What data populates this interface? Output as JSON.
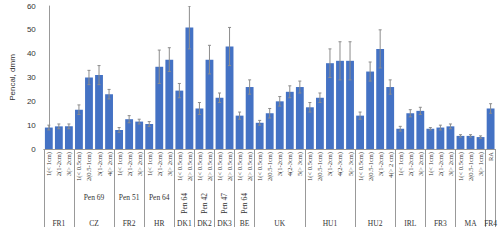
{
  "chart_data": {
    "type": "bar",
    "ylabel": "Pencal, dmm",
    "color": "#4472c4",
    "ylim": [
      0,
      60
    ],
    "yticks": [
      0,
      10,
      20,
      30,
      40,
      50,
      60
    ],
    "grid": false,
    "groups": [
      {
        "label": "FR1",
        "categories": [
          "1(< 1cm)",
          "2(1-2cm)",
          "3(> 2cm)"
        ],
        "values": [
          9,
          9.5,
          9.5
        ],
        "errors": [
          1,
          1,
          1
        ]
      },
      {
        "label": "CZ",
        "sublabel": "Pen 69",
        "categories": [
          "1(< 0.5cm)",
          "2(0.5-1cm)",
          "3(1-2cm)",
          "4(> 2cm)"
        ],
        "values": [
          16.5,
          30,
          31,
          23
        ],
        "errors": [
          2,
          3,
          4,
          2
        ]
      },
      {
        "label": "FR2",
        "sublabel": "Pen 51",
        "categories": [
          "1(< 1cm)",
          "2(1-2cm)",
          "3(> 2cm)"
        ],
        "values": [
          8,
          12.5,
          11.5
        ],
        "errors": [
          1,
          1.5,
          1
        ]
      },
      {
        "label": "HR",
        "sublabel": "Pen 64",
        "categories": [
          "1(< 1cm)",
          "2(1-2cm)",
          "3(> 2cm)"
        ],
        "values": [
          10.5,
          34.5,
          37.5
        ],
        "errors": [
          1,
          7,
          5
        ]
      },
      {
        "label": "DK1",
        "sublabel": "Pen 64",
        "categories": [
          "1(< 0.5cm)",
          "2(> 0.5cm)"
        ],
        "values": [
          24.5,
          51
        ],
        "errors": [
          3,
          9
        ]
      },
      {
        "label": "DK2",
        "sublabel": "Pen 42",
        "categories": [
          "1(< 0.5cm)",
          "2(> 0.5cm)"
        ],
        "values": [
          17,
          37.5
        ],
        "errors": [
          2.5,
          6
        ]
      },
      {
        "label": "DK3",
        "sublabel": "Pen 47",
        "categories": [
          "1(< 0.5cm)",
          "2(> 0.5cm)"
        ],
        "values": [
          21.5,
          43
        ],
        "errors": [
          2,
          8
        ]
      },
      {
        "label": "BE",
        "sublabel": "Pen 64",
        "categories": [
          "1(< 0.5cm)",
          "2(> 0.5cm)"
        ],
        "values": [
          14,
          26
        ],
        "errors": [
          1.5,
          3
        ]
      },
      {
        "label": "UK",
        "categories": [
          "1(< 0.5cm)",
          "2(0.5-1cm)",
          "3(1-2cm)",
          "4(2-3cm)",
          "5(> 3cm)"
        ],
        "values": [
          11,
          15,
          20,
          24,
          26
        ],
        "errors": [
          1,
          2,
          2,
          2.5,
          2.5
        ]
      },
      {
        "label": "HU1",
        "categories": [
          "1(< 0.5cm)",
          "2(0.5-1cm)",
          "3(1-2cm)",
          "4(2-3cm)",
          "5(> 3cm)"
        ],
        "values": [
          17.5,
          21.5,
          36,
          37,
          37
        ],
        "errors": [
          2,
          2,
          6,
          8,
          8
        ]
      },
      {
        "label": "HU2",
        "categories": [
          "1(< 0.5cm)",
          "2(0.5-1cm)",
          "3(1-2cm)",
          "4(> 2 cm)"
        ],
        "values": [
          14,
          32.5,
          42,
          26
        ],
        "errors": [
          1.5,
          4,
          8,
          3
        ]
      },
      {
        "label": "IRL",
        "categories": [
          "1(< 1cm)",
          "2(1-2cm)",
          "3(> 2cm)"
        ],
        "values": [
          8.5,
          15,
          16
        ],
        "errors": [
          1,
          1.5,
          1.5
        ]
      },
      {
        "label": "FR3",
        "categories": [
          "1(< 1cm)",
          "2(1-2cm)",
          "3(> 2cm)"
        ],
        "values": [
          8.5,
          9,
          9.5
        ],
        "errors": [
          0.5,
          1,
          1
        ]
      },
      {
        "label": "MA",
        "categories": [
          "1(< 0.5cm)",
          "2(0.5-1cm)",
          "3(> 1cm)"
        ],
        "values": [
          5.5,
          5.5,
          5
        ],
        "errors": [
          0.5,
          0.5,
          0.5
        ]
      },
      {
        "label": "FR4",
        "categories": [
          "RA"
        ],
        "values": [
          17
        ],
        "errors": [
          2
        ]
      }
    ]
  }
}
